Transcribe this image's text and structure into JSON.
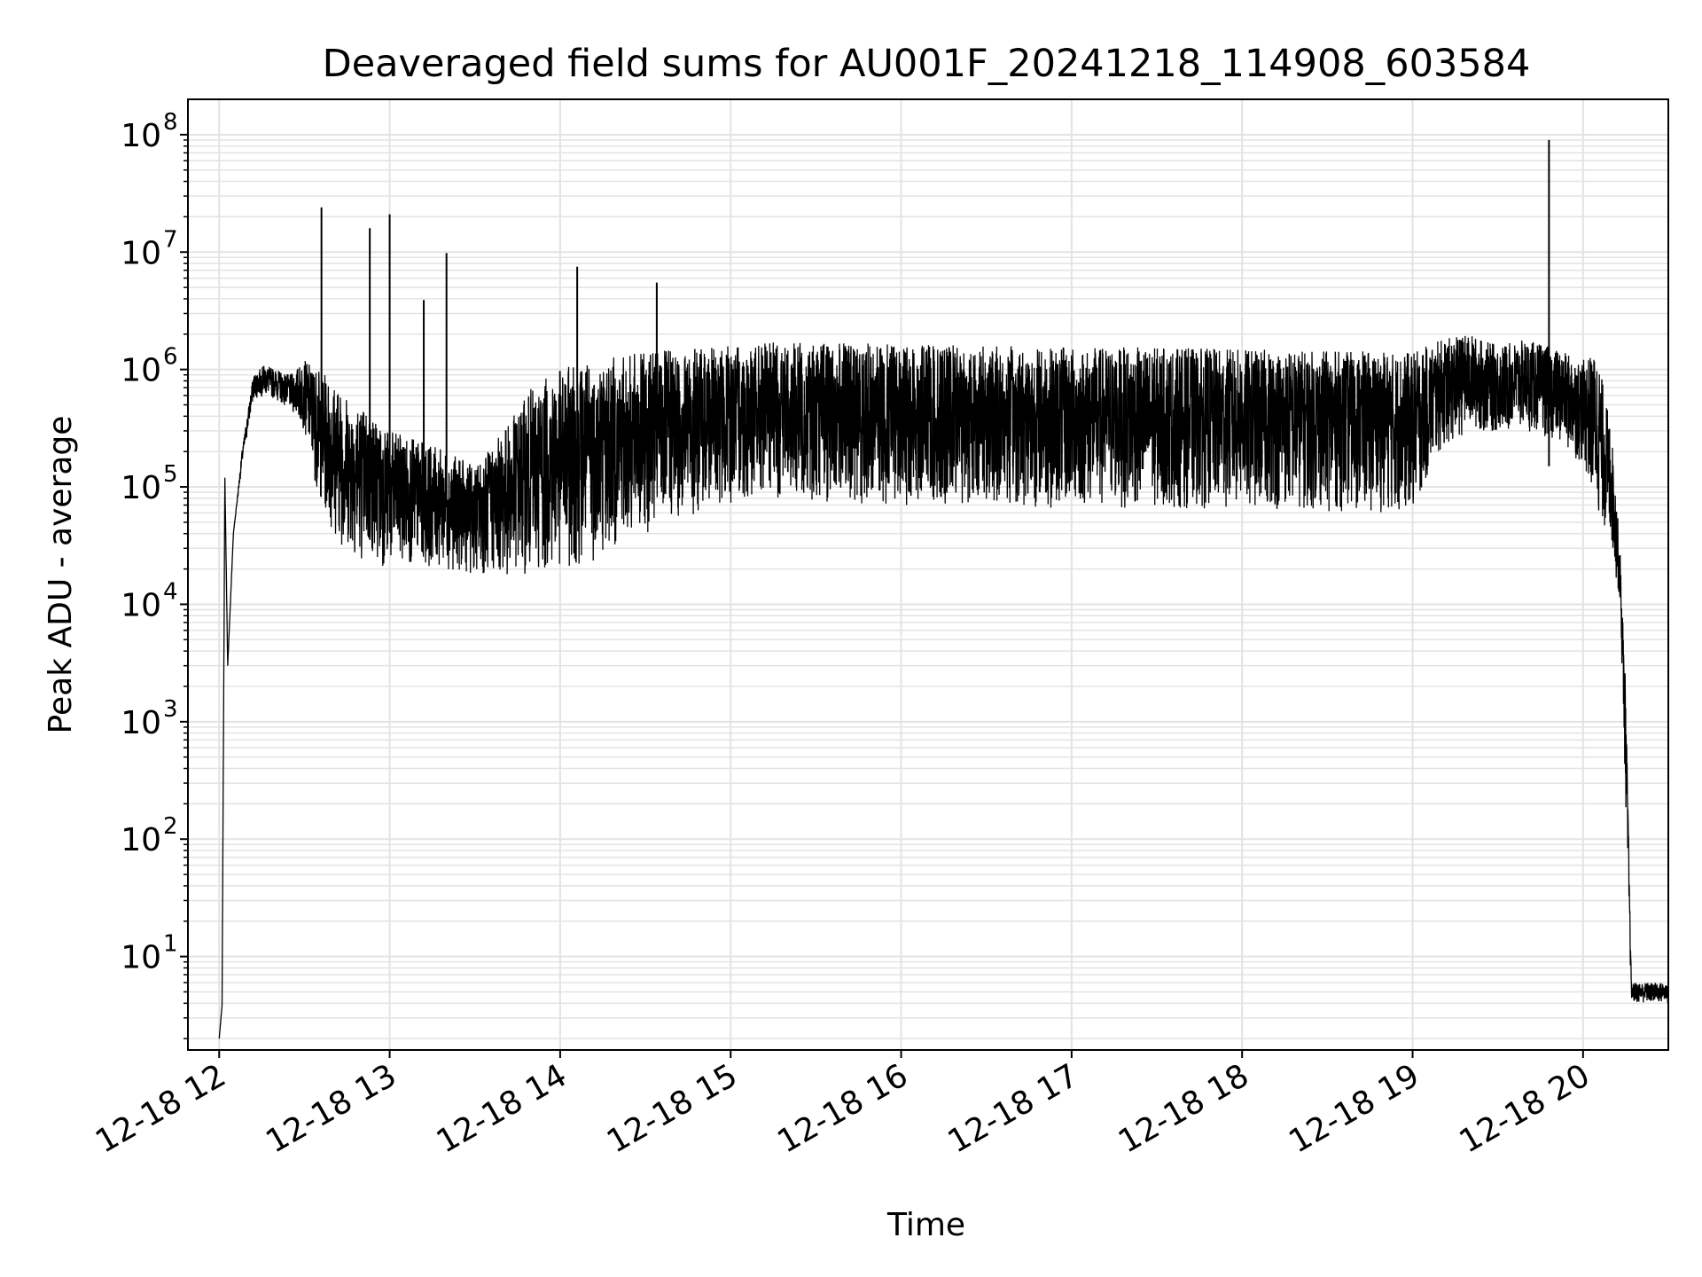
{
  "chart_data": {
    "type": "line",
    "title": "Deaveraged field sums for AU001F_20241218_114908_603584",
    "xlabel": "Time",
    "ylabel": "Peak ADU - average",
    "xscale": "time",
    "yscale": "log",
    "grid": true,
    "line_color": "#000000",
    "grid_color": "#e3e3e3",
    "xlim": [
      "2024-12-18 11:49",
      "2024-12-18 20:30"
    ],
    "ylim": [
      1.6,
      200000000
    ],
    "x_ticks": [
      {
        "value": "2024-12-18 12:00",
        "label": "12-18 12"
      },
      {
        "value": "2024-12-18 13:00",
        "label": "12-18 13"
      },
      {
        "value": "2024-12-18 14:00",
        "label": "12-18 14"
      },
      {
        "value": "2024-12-18 15:00",
        "label": "12-18 15"
      },
      {
        "value": "2024-12-18 16:00",
        "label": "12-18 16"
      },
      {
        "value": "2024-12-18 17:00",
        "label": "12-18 17"
      },
      {
        "value": "2024-12-18 18:00",
        "label": "12-18 18"
      },
      {
        "value": "2024-12-18 19:00",
        "label": "12-18 19"
      },
      {
        "value": "2024-12-18 20:00",
        "label": "12-18 20"
      }
    ],
    "y_ticks": [
      {
        "value": 10,
        "base": "10",
        "exp": "1"
      },
      {
        "value": 100,
        "base": "10",
        "exp": "2"
      },
      {
        "value": 1000,
        "base": "10",
        "exp": "3"
      },
      {
        "value": 10000,
        "base": "10",
        "exp": "4"
      },
      {
        "value": 100000,
        "base": "10",
        "exp": "5"
      },
      {
        "value": 1000000,
        "base": "10",
        "exp": "6"
      },
      {
        "value": 10000000,
        "base": "10",
        "exp": "7"
      },
      {
        "value": 100000000,
        "base": "10",
        "exp": "8"
      }
    ],
    "series": [
      {
        "x": [
          "2024-12-18 12:00",
          "2024-12-18 12:01",
          "2024-12-18 12:02",
          "2024-12-18 12:03",
          "2024-12-18 12:05",
          "2024-12-18 12:08",
          "2024-12-18 12:12",
          "2024-12-18 12:16",
          "2024-12-18 12:20",
          "2024-12-18 12:25",
          "2024-12-18 12:30",
          "2024-12-18 12:35",
          "2024-12-18 12:40",
          "2024-12-18 12:45",
          "2024-12-18 12:50",
          "2024-12-18 12:55",
          "2024-12-18 13:00",
          "2024-12-18 13:10",
          "2024-12-18 13:20",
          "2024-12-18 13:30",
          "2024-12-18 13:40",
          "2024-12-18 13:50",
          "2024-12-18 14:00",
          "2024-12-18 14:10",
          "2024-12-18 14:20",
          "2024-12-18 14:30",
          "2024-12-18 14:45",
          "2024-12-18 15:00",
          "2024-12-18 15:15",
          "2024-12-18 15:30",
          "2024-12-18 16:00",
          "2024-12-18 16:30",
          "2024-12-18 17:00",
          "2024-12-18 17:30",
          "2024-12-18 18:00",
          "2024-12-18 18:30",
          "2024-12-18 19:00",
          "2024-12-18 19:10",
          "2024-12-18 19:20",
          "2024-12-18 19:30",
          "2024-12-18 19:40",
          "2024-12-18 19:50",
          "2024-12-18 20:00",
          "2024-12-18 20:05",
          "2024-12-18 20:10",
          "2024-12-18 20:13",
          "2024-12-18 20:15",
          "2024-12-18 20:17",
          "2024-12-18 20:18",
          "2024-12-18 20:30"
        ],
        "y_low": [
          2,
          3.8,
          120000,
          3000,
          40000,
          150000,
          550000,
          600000,
          550000,
          450000,
          300000,
          80000,
          40000,
          28000,
          24000,
          22000,
          20000,
          22000,
          20000,
          18000,
          17000,
          18000,
          19000,
          22000,
          30000,
          40000,
          55000,
          70000,
          80000,
          75000,
          70000,
          68000,
          66000,
          65000,
          64000,
          62000,
          60000,
          200000,
          300000,
          280000,
          300000,
          250000,
          150000,
          60000,
          30000,
          10000,
          200,
          4,
          4,
          4
        ],
        "y_high": [
          2,
          3.8,
          120000,
          3000,
          40000,
          200000,
          900000,
          1100000,
          1000000,
          900000,
          1200000,
          1000000,
          800000,
          600000,
          500000,
          400000,
          300000,
          250000,
          200000,
          150000,
          300000,
          700000,
          1000000,
          1200000,
          1300000,
          1400000,
          1500000,
          1600000,
          1700000,
          1700000,
          1650000,
          1600000,
          1550000,
          1550000,
          1500000,
          1450000,
          1400000,
          1800000,
          2000000,
          1600000,
          1800000,
          1500000,
          1200000,
          1400000,
          300000,
          30000,
          2000,
          6,
          6,
          6
        ]
      }
    ],
    "spikes": [
      {
        "x": "2024-12-18 12:36",
        "y": 24000000
      },
      {
        "x": "2024-12-18 12:53",
        "y": 16000000
      },
      {
        "x": "2024-12-18 13:00",
        "y": 21000000
      },
      {
        "x": "2024-12-18 13:12",
        "y": 3900000
      },
      {
        "x": "2024-12-18 13:20",
        "y": 9800000
      },
      {
        "x": "2024-12-18 14:06",
        "y": 7500000
      },
      {
        "x": "2024-12-18 14:34",
        "y": 5500000
      },
      {
        "x": "2024-12-18 19:48",
        "y": 90000000
      }
    ]
  }
}
